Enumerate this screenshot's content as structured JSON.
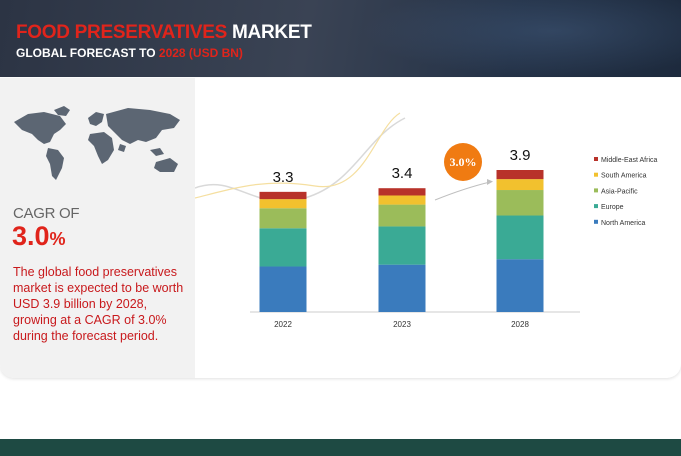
{
  "header": {
    "title_red": "FOOD PRESERVATIVES",
    "title_white": "MARKET",
    "subtitle_white": "GLOBAL FORECAST TO",
    "subtitle_red": "2028 (USD BN)"
  },
  "summary": {
    "cagr_label": "CAGR OF",
    "cagr_number": "3.0",
    "cagr_percent": "%",
    "description": "The global food preservatives market is expected to be worth USD 3.9 billion by 2028, growing at a CAGR of 3.0% during the forecast period."
  },
  "chart_data": {
    "type": "bar",
    "stacked": true,
    "categories": [
      "2022",
      "2023",
      "2028"
    ],
    "totals": [
      3.3,
      3.4,
      3.9
    ],
    "total_labels": [
      "3.3",
      "3.4",
      "3.9"
    ],
    "cagr_badge": "3.0%",
    "legend_position": "right",
    "series": [
      {
        "name": "North America",
        "values": [
          1.25,
          1.3,
          1.45
        ],
        "color": "#3a7bbd"
      },
      {
        "name": "Europe",
        "values": [
          1.05,
          1.05,
          1.2
        ],
        "color": "#3aaa95"
      },
      {
        "name": "Asia-Pacific",
        "values": [
          0.55,
          0.6,
          0.7
        ],
        "color": "#9bbc5a"
      },
      {
        "name": "South America",
        "values": [
          0.25,
          0.25,
          0.3
        ],
        "color": "#f2c12e"
      },
      {
        "name": "Middle-East Africa",
        "values": [
          0.2,
          0.2,
          0.25
        ],
        "color": "#b8322a"
      }
    ],
    "legend_order": [
      "Middle-East Africa",
      "South America",
      "Asia-Pacific",
      "Europe",
      "North America"
    ],
    "grid": false,
    "ylim": [
      0,
      4.2
    ]
  }
}
